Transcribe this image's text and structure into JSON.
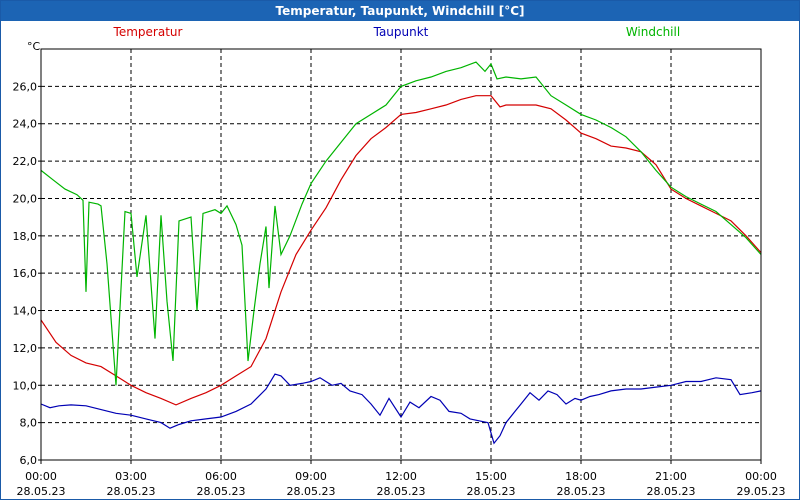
{
  "chart_data": {
    "type": "line",
    "title": "Temperatur, Taupunkt, Windchill [°C]",
    "ylabel": "°C",
    "xlabel": "",
    "ylim": [
      6.0,
      28.0
    ],
    "xlim": [
      0,
      24
    ],
    "grid": true,
    "yticks": [
      "6,0",
      "8,0",
      "10,0",
      "12,0",
      "14,0",
      "16,0",
      "18,0",
      "20,0",
      "22,0",
      "24,0",
      "26,0"
    ],
    "ytick_values": [
      6,
      8,
      10,
      12,
      14,
      16,
      18,
      20,
      22,
      24,
      26
    ],
    "xticks": [
      {
        "time": "00:00",
        "date": "28.05.23",
        "h": 0
      },
      {
        "time": "03:00",
        "date": "28.05.23",
        "h": 3
      },
      {
        "time": "06:00",
        "date": "28.05.23",
        "h": 6
      },
      {
        "time": "09:00",
        "date": "28.05.23",
        "h": 9
      },
      {
        "time": "12:00",
        "date": "28.05.23",
        "h": 12
      },
      {
        "time": "15:00",
        "date": "28.05.23",
        "h": 15
      },
      {
        "time": "18:00",
        "date": "28.05.23",
        "h": 18
      },
      {
        "time": "21:00",
        "date": "28.05.23",
        "h": 21
      },
      {
        "time": "00:00",
        "date": "29.05.23",
        "h": 24
      }
    ],
    "series": [
      {
        "name": "Temperatur",
        "color": "#d40000",
        "points": [
          [
            0,
            13.5
          ],
          [
            0.5,
            12.3
          ],
          [
            1,
            11.6
          ],
          [
            1.5,
            11.2
          ],
          [
            2,
            11.0
          ],
          [
            2.5,
            10.5
          ],
          [
            3,
            10.0
          ],
          [
            3.5,
            9.6
          ],
          [
            4,
            9.3
          ],
          [
            4.5,
            8.95
          ],
          [
            5,
            9.3
          ],
          [
            5.5,
            9.6
          ],
          [
            6,
            10.0
          ],
          [
            6.5,
            10.5
          ],
          [
            7,
            11.0
          ],
          [
            7.5,
            12.5
          ],
          [
            8,
            15.0
          ],
          [
            8.5,
            17.0
          ],
          [
            9,
            18.3
          ],
          [
            9.5,
            19.5
          ],
          [
            10,
            21.0
          ],
          [
            10.5,
            22.3
          ],
          [
            11,
            23.2
          ],
          [
            11.5,
            23.8
          ],
          [
            12,
            24.5
          ],
          [
            12.5,
            24.6
          ],
          [
            13,
            24.8
          ],
          [
            13.5,
            25.0
          ],
          [
            14,
            25.3
          ],
          [
            14.5,
            25.5
          ],
          [
            15,
            25.5
          ],
          [
            15.3,
            24.9
          ],
          [
            15.5,
            25.0
          ],
          [
            16,
            25.0
          ],
          [
            16.5,
            25.0
          ],
          [
            17,
            24.8
          ],
          [
            17.5,
            24.2
          ],
          [
            18,
            23.5
          ],
          [
            18.5,
            23.2
          ],
          [
            19,
            22.8
          ],
          [
            19.5,
            22.7
          ],
          [
            20,
            22.5
          ],
          [
            20.5,
            21.8
          ],
          [
            21,
            20.5
          ],
          [
            21.5,
            20.0
          ],
          [
            22,
            19.6
          ],
          [
            22.5,
            19.2
          ],
          [
            23,
            18.8
          ],
          [
            23.5,
            18.0
          ],
          [
            24,
            17.1
          ]
        ]
      },
      {
        "name": "Taupunkt",
        "color": "#0000b4",
        "points": [
          [
            0,
            9.0
          ],
          [
            0.3,
            8.8
          ],
          [
            0.6,
            8.9
          ],
          [
            1,
            8.95
          ],
          [
            1.5,
            8.9
          ],
          [
            2,
            8.7
          ],
          [
            2.5,
            8.5
          ],
          [
            3,
            8.4
          ],
          [
            3.5,
            8.2
          ],
          [
            4,
            8.0
          ],
          [
            4.3,
            7.7
          ],
          [
            4.6,
            7.9
          ],
          [
            5,
            8.1
          ],
          [
            5.5,
            8.2
          ],
          [
            6,
            8.3
          ],
          [
            6.5,
            8.6
          ],
          [
            7,
            9.0
          ],
          [
            7.5,
            9.8
          ],
          [
            7.8,
            10.6
          ],
          [
            8,
            10.5
          ],
          [
            8.3,
            10.0
          ],
          [
            8.7,
            10.1
          ],
          [
            9,
            10.2
          ],
          [
            9.3,
            10.4
          ],
          [
            9.7,
            10.0
          ],
          [
            10,
            10.1
          ],
          [
            10.3,
            9.7
          ],
          [
            10.7,
            9.5
          ],
          [
            11,
            9.0
          ],
          [
            11.3,
            8.4
          ],
          [
            11.6,
            9.3
          ],
          [
            12,
            8.3
          ],
          [
            12.3,
            9.1
          ],
          [
            12.6,
            8.8
          ],
          [
            13,
            9.4
          ],
          [
            13.3,
            9.2
          ],
          [
            13.6,
            8.6
          ],
          [
            14,
            8.5
          ],
          [
            14.3,
            8.2
          ],
          [
            14.6,
            8.1
          ],
          [
            14.9,
            8.0
          ],
          [
            15.1,
            6.9
          ],
          [
            15.3,
            7.3
          ],
          [
            15.5,
            8.0
          ],
          [
            15.8,
            8.6
          ],
          [
            16,
            9.0
          ],
          [
            16.3,
            9.6
          ],
          [
            16.6,
            9.2
          ],
          [
            16.9,
            9.7
          ],
          [
            17.2,
            9.5
          ],
          [
            17.5,
            9.0
          ],
          [
            17.8,
            9.3
          ],
          [
            18,
            9.2
          ],
          [
            18.3,
            9.4
          ],
          [
            18.6,
            9.5
          ],
          [
            19,
            9.7
          ],
          [
            19.5,
            9.8
          ],
          [
            20,
            9.8
          ],
          [
            20.5,
            9.9
          ],
          [
            21,
            10.0
          ],
          [
            21.5,
            10.2
          ],
          [
            22,
            10.2
          ],
          [
            22.5,
            10.4
          ],
          [
            23,
            10.3
          ],
          [
            23.3,
            9.5
          ],
          [
            23.7,
            9.6
          ],
          [
            24,
            9.7
          ]
        ]
      },
      {
        "name": "Windchill",
        "color": "#00b400",
        "points": [
          [
            0,
            21.5
          ],
          [
            0.4,
            21.0
          ],
          [
            0.8,
            20.5
          ],
          [
            1.2,
            20.2
          ],
          [
            1.4,
            19.9
          ],
          [
            1.5,
            15.0
          ],
          [
            1.6,
            19.8
          ],
          [
            1.9,
            19.7
          ],
          [
            2,
            19.6
          ],
          [
            2.2,
            16.5
          ],
          [
            2.5,
            10.0
          ],
          [
            2.8,
            19.3
          ],
          [
            3,
            19.2
          ],
          [
            3.2,
            15.8
          ],
          [
            3.5,
            19.1
          ],
          [
            3.8,
            12.5
          ],
          [
            4,
            19.1
          ],
          [
            4.2,
            14.5
          ],
          [
            4.4,
            11.3
          ],
          [
            4.6,
            18.8
          ],
          [
            5,
            19.0
          ],
          [
            5.2,
            14.0
          ],
          [
            5.4,
            19.2
          ],
          [
            5.8,
            19.4
          ],
          [
            6,
            19.2
          ],
          [
            6.2,
            19.6
          ],
          [
            6.5,
            18.6
          ],
          [
            6.7,
            17.5
          ],
          [
            6.9,
            11.3
          ],
          [
            7.1,
            14.0
          ],
          [
            7.3,
            16.5
          ],
          [
            7.5,
            18.5
          ],
          [
            7.6,
            15.2
          ],
          [
            7.8,
            19.6
          ],
          [
            8,
            17.0
          ],
          [
            8.3,
            18.0
          ],
          [
            8.7,
            19.7
          ],
          [
            9,
            20.8
          ],
          [
            9.5,
            22.0
          ],
          [
            10,
            23.0
          ],
          [
            10.5,
            24.0
          ],
          [
            11,
            24.5
          ],
          [
            11.5,
            25.0
          ],
          [
            12,
            26.0
          ],
          [
            12.5,
            26.3
          ],
          [
            13,
            26.5
          ],
          [
            13.5,
            26.8
          ],
          [
            14,
            27.0
          ],
          [
            14.5,
            27.3
          ],
          [
            14.8,
            26.8
          ],
          [
            15,
            27.2
          ],
          [
            15.2,
            26.4
          ],
          [
            15.5,
            26.5
          ],
          [
            16,
            26.4
          ],
          [
            16.5,
            26.5
          ],
          [
            17,
            25.5
          ],
          [
            17.5,
            25.0
          ],
          [
            18,
            24.5
          ],
          [
            18.5,
            24.2
          ],
          [
            19,
            23.8
          ],
          [
            19.5,
            23.3
          ],
          [
            20,
            22.5
          ],
          [
            20.5,
            21.5
          ],
          [
            21,
            20.6
          ],
          [
            21.5,
            20.1
          ],
          [
            22,
            19.7
          ],
          [
            22.5,
            19.3
          ],
          [
            23,
            18.6
          ],
          [
            23.5,
            17.9
          ],
          [
            24,
            17.0
          ]
        ]
      }
    ]
  }
}
